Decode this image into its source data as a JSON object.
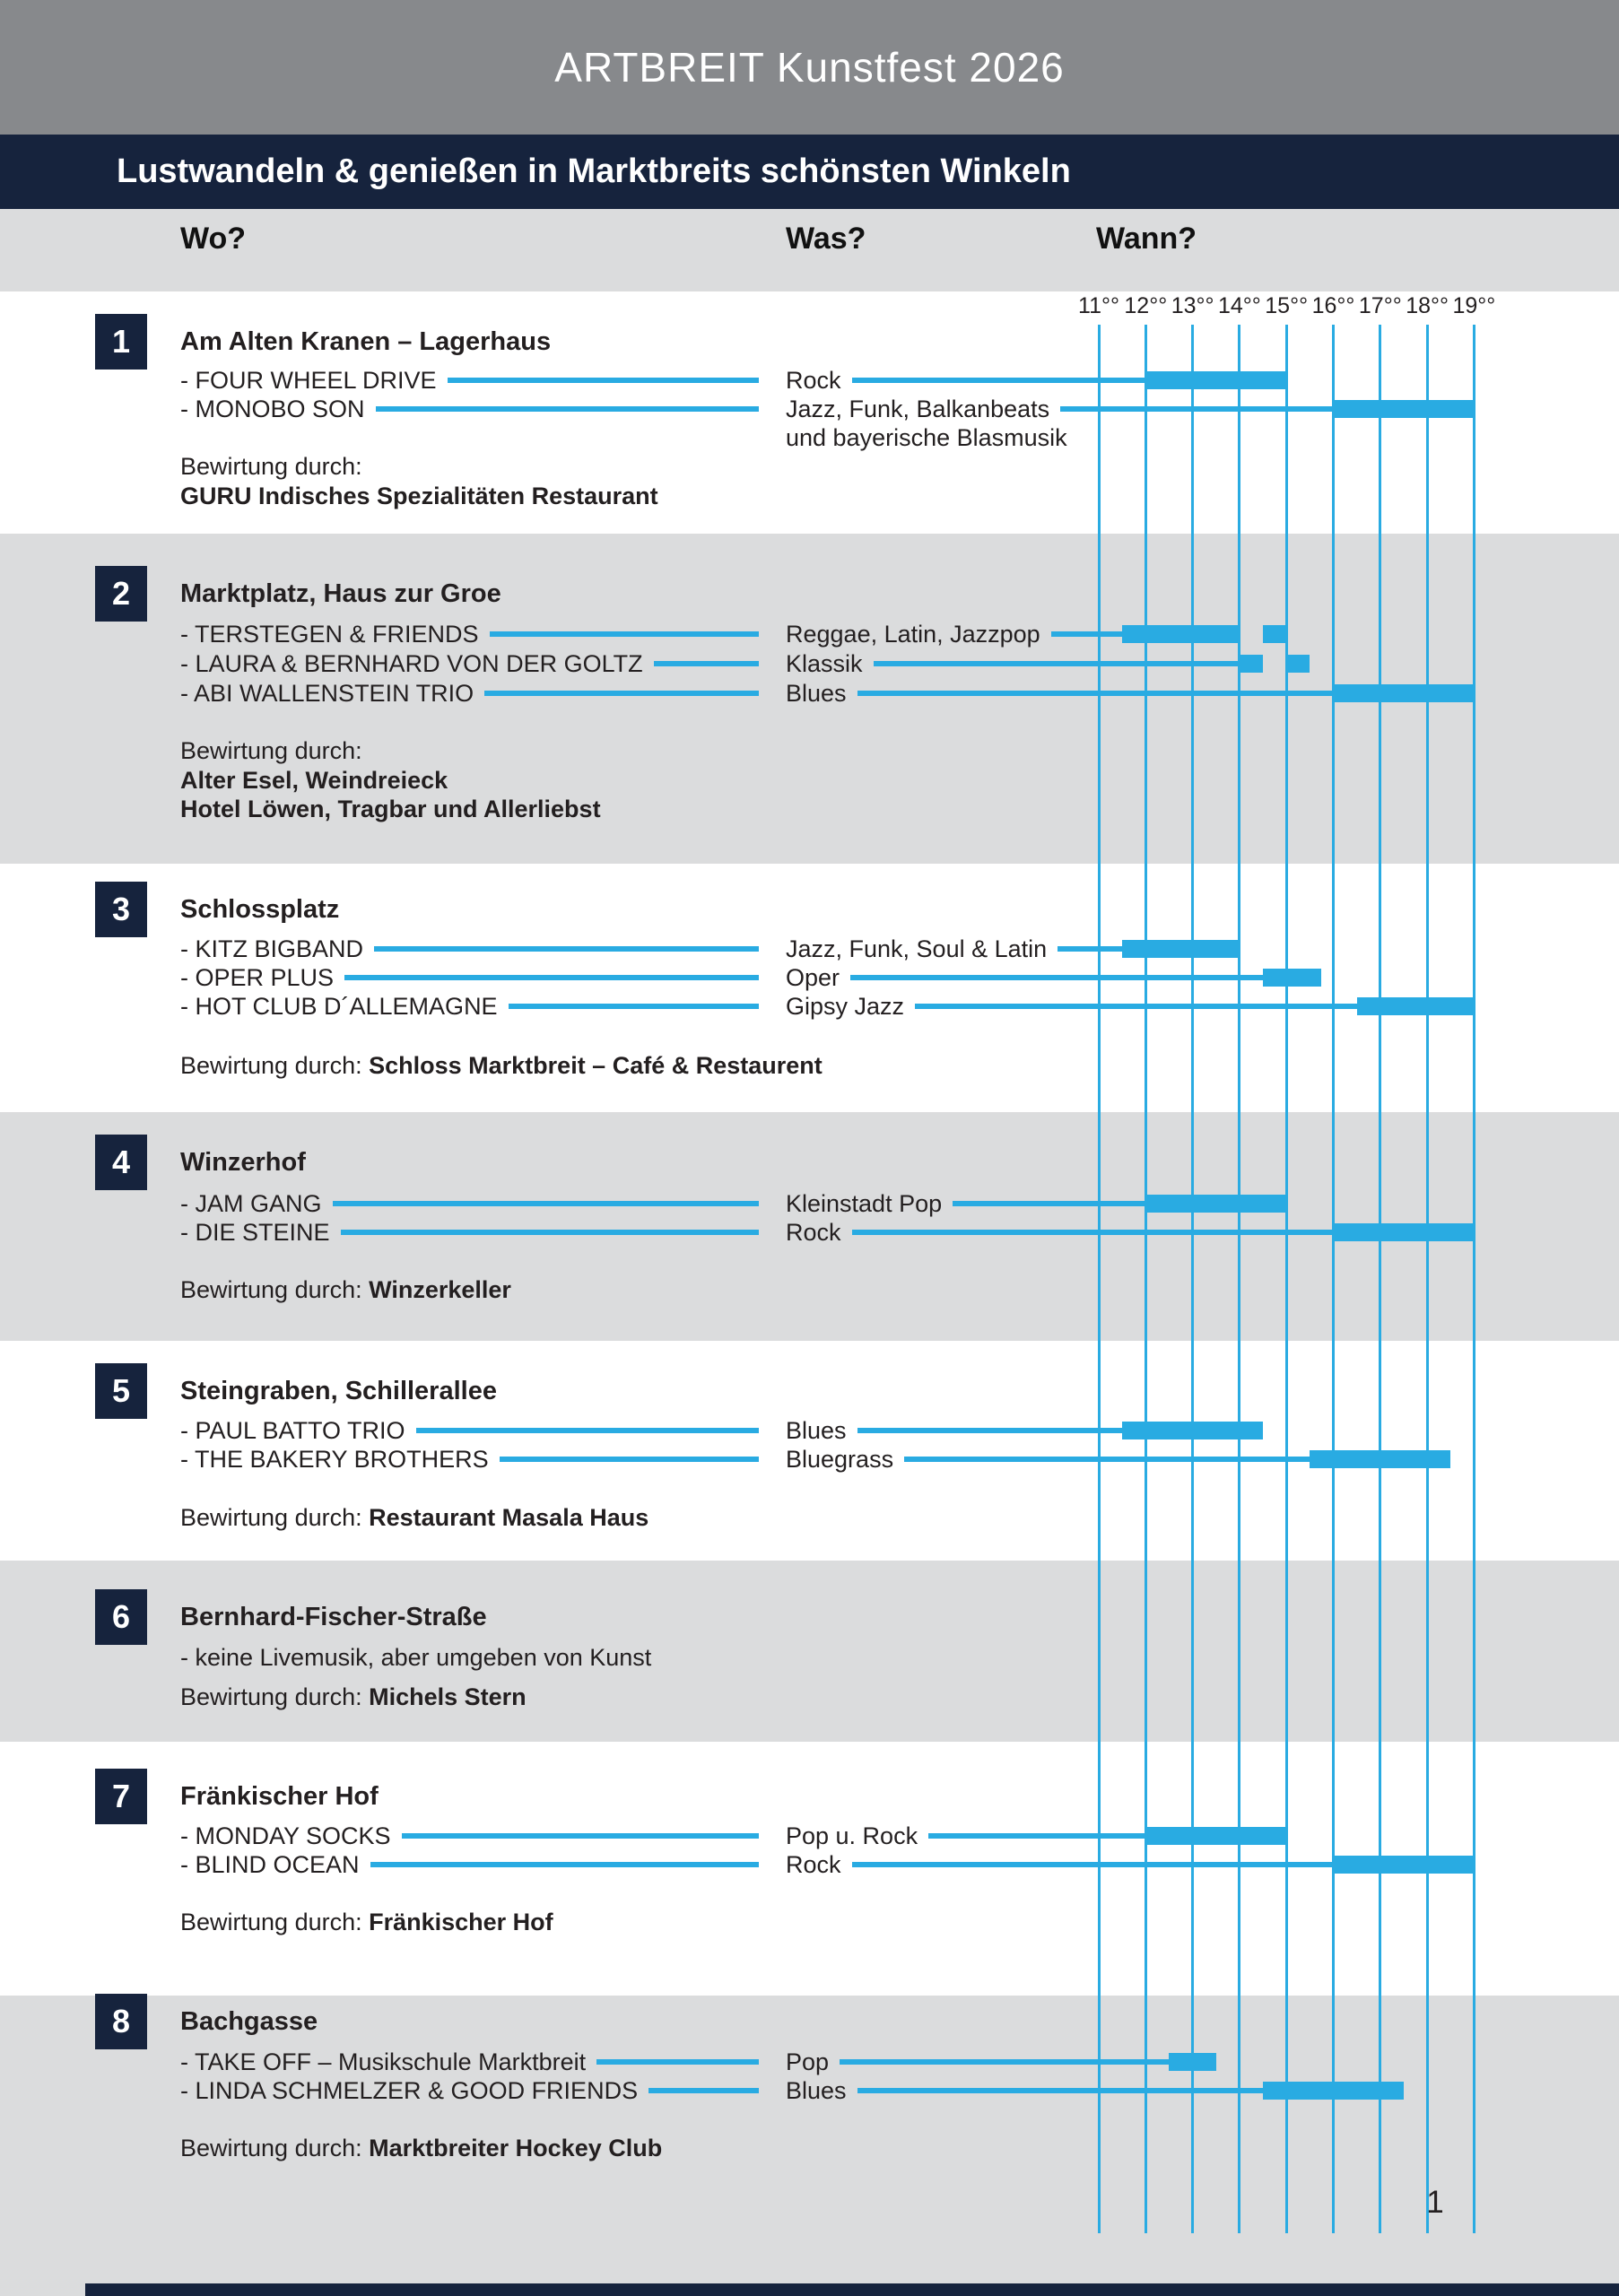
{
  "page": {
    "title": "ARTBREIT Kunstfest 2026",
    "page_number": "1"
  },
  "banner": {
    "subtitle": "Lustwandeln & genießen in Marktbreits schönsten Winkeln"
  },
  "columns": {
    "where": "Wo?",
    "what": "Was?",
    "when": "Wann?"
  },
  "colors": {
    "accent_blue": "#29ABE2",
    "navy": "#16233D",
    "header_gray": "#87898C",
    "band_gray": "#DBDCDD",
    "text": "#231F20",
    "white": "#FFFFFF"
  },
  "chart_data": {
    "type": "gantt",
    "axis": {
      "unit": "hour",
      "start": 11,
      "end": 19,
      "tick_labels": [
        "11°°",
        "12°°",
        "13°°",
        "14°°",
        "15°°",
        "16°°",
        "17°°",
        "18°°",
        "19°°"
      ],
      "grid": true
    },
    "bewirtung_label": "Bewirtung durch:",
    "sections": [
      {
        "number": "1",
        "title": "Am Alten Kranen – Lagerhaus",
        "shaded": false,
        "acts": [
          {
            "artist": "- FOUR WHEEL DRIVE",
            "genre": "Rock",
            "slots": [
              [
                12,
                15
              ]
            ]
          },
          {
            "artist": "- MONOBO SON",
            "genre": "Jazz, Funk, Balkanbeats",
            "genre_line2": "und bayerische Blasmusik",
            "slots": [
              [
                16,
                19
              ]
            ]
          }
        ],
        "bewirtung": {
          "inline": false,
          "names": [
            "GURU Indisches Spezialitäten Restaurant"
          ]
        }
      },
      {
        "number": "2",
        "title": "Marktplatz, Haus zur Groe",
        "shaded": true,
        "acts": [
          {
            "artist": "- TERSTEGEN & FRIENDS",
            "genre": "Reggae, Latin, Jazzpop",
            "slots": [
              [
                11.5,
                14
              ],
              [
                14.5,
                15
              ]
            ]
          },
          {
            "artist": "- LAURA & BERNHARD VON DER GOLTZ",
            "genre": "Klassik",
            "slots": [
              [
                14,
                14.5
              ],
              [
                15,
                15.5
              ]
            ]
          },
          {
            "artist": "- ABI WALLENSTEIN TRIO",
            "genre": "Blues",
            "slots": [
              [
                16,
                19
              ]
            ]
          }
        ],
        "bewirtung": {
          "inline": false,
          "names": [
            "Alter Esel, Weindreieck",
            "Hotel Löwen, Tragbar und Allerliebst"
          ]
        }
      },
      {
        "number": "3",
        "title": "Schlossplatz",
        "shaded": false,
        "acts": [
          {
            "artist": "- KITZ BIGBAND",
            "genre": "Jazz, Funk, Soul & Latin",
            "slots": [
              [
                11.5,
                14
              ]
            ]
          },
          {
            "artist": "- OPER PLUS",
            "genre": "Oper",
            "slots": [
              [
                14.5,
                15.75
              ]
            ]
          },
          {
            "artist": "- HOT CLUB D´ALLEMAGNE",
            "genre": "Gipsy Jazz",
            "slots": [
              [
                16.5,
                19
              ]
            ]
          }
        ],
        "bewirtung": {
          "inline": true,
          "names": [
            "Schloss Marktbreit – Café & Restaurent"
          ]
        }
      },
      {
        "number": "4",
        "title": "Winzerhof",
        "shaded": true,
        "acts": [
          {
            "artist": "- JAM GANG",
            "genre": "Kleinstadt Pop",
            "slots": [
              [
                12,
                15
              ]
            ]
          },
          {
            "artist": "- DIE STEINE",
            "genre": "Rock",
            "slots": [
              [
                16,
                19
              ]
            ]
          }
        ],
        "bewirtung": {
          "inline": true,
          "names": [
            "Winzerkeller"
          ]
        }
      },
      {
        "number": "5",
        "title": "Steingraben, Schillerallee",
        "shaded": false,
        "acts": [
          {
            "artist": "- PAUL BATTO TRIO",
            "genre": "Blues",
            "slots": [
              [
                11.5,
                14.5
              ]
            ]
          },
          {
            "artist": "- THE BAKERY BROTHERS",
            "genre": "Bluegrass",
            "slots": [
              [
                15.5,
                18.5
              ]
            ]
          }
        ],
        "bewirtung": {
          "inline": true,
          "names": [
            "Restaurant Masala Haus"
          ]
        }
      },
      {
        "number": "6",
        "title": "Bernhard-Fischer-Straße",
        "shaded": true,
        "note": "- keine Livemusik, aber umgeben von Kunst",
        "acts": [],
        "bewirtung": {
          "inline": true,
          "names": [
            "Michels Stern"
          ]
        }
      },
      {
        "number": "7",
        "title": "Fränkischer Hof",
        "shaded": false,
        "acts": [
          {
            "artist": "- MONDAY SOCKS",
            "genre": "Pop u. Rock",
            "slots": [
              [
                12,
                15
              ]
            ]
          },
          {
            "artist": "- BLIND OCEAN",
            "genre": "Rock",
            "slots": [
              [
                16,
                19
              ]
            ]
          }
        ],
        "bewirtung": {
          "inline": true,
          "names": [
            "Fränkischer Hof"
          ]
        }
      },
      {
        "number": "8",
        "title": "Bachgasse",
        "shaded": true,
        "acts": [
          {
            "artist": "- TAKE OFF – Musikschule Marktbreit",
            "genre": "Pop",
            "slots": [
              [
                12.5,
                13.5
              ]
            ]
          },
          {
            "artist": "- LINDA SCHMELZER & GOOD FRIENDS",
            "genre": "Blues",
            "slots": [
              [
                14.5,
                17.5
              ]
            ]
          }
        ],
        "bewirtung": {
          "inline": true,
          "names": [
            "Marktbreiter Hockey Club"
          ]
        }
      }
    ]
  }
}
